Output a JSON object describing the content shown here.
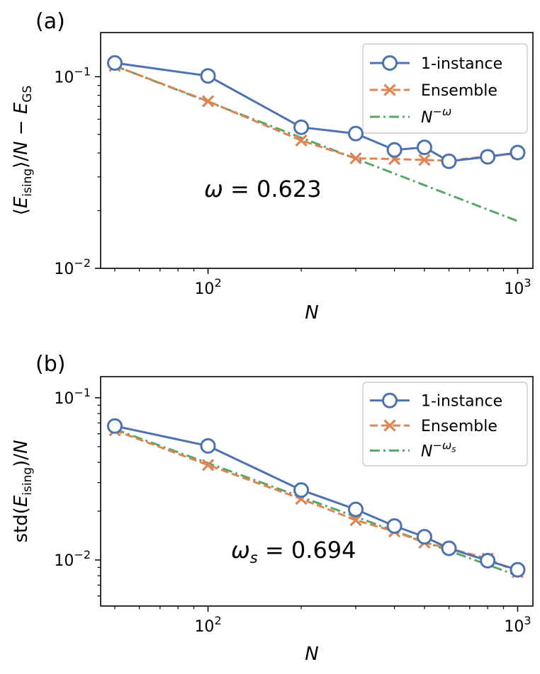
{
  "chart_data": [
    {
      "type": "line",
      "panel_label": "(a)",
      "xlabel": "N",
      "ylabel": "⟨E_ising⟩/N − E_GS",
      "xscale": "log",
      "yscale": "log",
      "xlim": [
        45,
        1120
      ],
      "ylim": [
        0.01,
        0.17
      ],
      "x_ticks": [
        {
          "value": 100,
          "base": "10",
          "exp": "2"
        },
        {
          "value": 1000,
          "base": "10",
          "exp": "3"
        }
      ],
      "y_ticks": [
        {
          "value": 0.1,
          "base": "10",
          "exp": "−1"
        },
        {
          "value": 0.01,
          "base": "10",
          "exp": "−2"
        }
      ],
      "x": [
        50,
        100,
        200,
        300,
        400,
        500,
        600,
        800,
        1000
      ],
      "series": [
        {
          "name": "1-instance",
          "style": "solid-circle",
          "color": "#4c72b0",
          "values": [
            0.118,
            0.101,
            0.0545,
            0.0505,
            0.0415,
            0.0428,
            0.0362,
            0.0382,
            0.0402
          ]
        },
        {
          "name": "Ensemble",
          "style": "dashed-x",
          "color": "#dd8452",
          "values": [
            0.114,
            0.0745,
            0.0465,
            0.0375,
            0.0372,
            0.0368,
            0.0364,
            0.0385,
            0.0398
          ]
        },
        {
          "name": "N^{-ω}",
          "style": "dashdot",
          "color": "#55a868",
          "x_range": [
            50,
            1000
          ],
          "exponent": -0.623,
          "y_at_50": 0.114
        }
      ],
      "legend": {
        "position": "top-right",
        "entries": [
          {
            "text": "1-instance",
            "style": "solid-circle"
          },
          {
            "text": "Ensemble",
            "style": "dashed-x"
          },
          {
            "text_base": "N",
            "text_sup": "−ω",
            "style": "dashdot"
          }
        ]
      },
      "annotation": {
        "lhs": "ω",
        "rhs": " = 0.623"
      }
    },
    {
      "type": "line",
      "panel_label": "(b)",
      "xlabel": "N",
      "ylabel": "std(E_ising)/N",
      "xscale": "log",
      "yscale": "log",
      "xlim": [
        45,
        1120
      ],
      "ylim": [
        0.0052,
        0.135
      ],
      "x_ticks": [
        {
          "value": 100,
          "base": "10",
          "exp": "2"
        },
        {
          "value": 1000,
          "base": "10",
          "exp": "3"
        }
      ],
      "y_ticks": [
        {
          "value": 0.1,
          "base": "10",
          "exp": "−1"
        },
        {
          "value": 0.01,
          "base": "10",
          "exp": "−2"
        }
      ],
      "x": [
        50,
        100,
        200,
        300,
        400,
        500,
        600,
        800,
        1000
      ],
      "series": [
        {
          "name": "1-instance",
          "style": "solid-circle",
          "color": "#4c72b0",
          "values": [
            0.067,
            0.0505,
            0.027,
            0.0205,
            0.0162,
            0.0139,
            0.0118,
            0.0099,
            0.0087
          ]
        },
        {
          "name": "Ensemble",
          "style": "dashed-x",
          "color": "#dd8452",
          "values": [
            0.063,
            0.0385,
            0.0238,
            0.0176,
            0.015,
            0.0128,
            0.0118,
            0.0102,
            0.0084
          ]
        },
        {
          "name": "N^{-ω_s}",
          "style": "dashdot",
          "color": "#55a868",
          "x_range": [
            50,
            1000
          ],
          "exponent": -0.694,
          "y_at_50": 0.064
        }
      ],
      "legend": {
        "position": "top-right",
        "entries": [
          {
            "text": "1-instance",
            "style": "solid-circle"
          },
          {
            "text": "Ensemble",
            "style": "dashed-x"
          },
          {
            "text_base": "N",
            "text_sup": "−ω",
            "text_sub": "s",
            "style": "dashdot"
          }
        ]
      },
      "annotation": {
        "lhs": "ω",
        "lhs_sub": "s",
        "rhs": " = 0.694"
      }
    }
  ]
}
